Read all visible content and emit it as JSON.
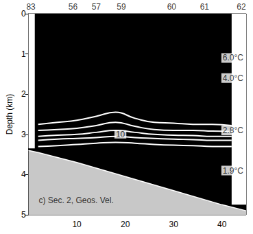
{
  "chart_data": {
    "type": "contour",
    "ylabel": "Depth (km)",
    "annotation": "c) Sec. 2, Geos. Vel.",
    "xlim": [
      0,
      45
    ],
    "xticks": [
      10,
      20,
      30,
      40
    ],
    "ylim": [
      0,
      5
    ],
    "yticks": [
      0,
      1,
      2,
      3,
      4,
      5
    ],
    "stations": {
      "labels": [
        "83",
        "56",
        "57",
        "59",
        "60",
        "61",
        "62"
      ],
      "x": [
        0.5,
        9.2,
        14,
        19.2,
        29.6,
        36.4,
        44
      ]
    },
    "temperature_labels": {
      "labels": [
        "6.0°C",
        "4.0°C",
        "2.8°C",
        "1.9°C"
      ],
      "depth": [
        1.1,
        1.6,
        2.9,
        3.9
      ]
    },
    "contour_x": [
      2,
      6,
      10,
      14,
      18,
      22,
      26,
      30,
      34,
      38,
      42
    ],
    "contour_lines": [
      [
        2.75,
        2.7,
        2.65,
        2.55,
        2.45,
        2.6,
        2.7,
        2.72,
        2.75,
        2.75,
        2.78
      ],
      [
        2.9,
        2.88,
        2.85,
        2.78,
        2.7,
        2.8,
        2.88,
        2.9,
        2.9,
        2.92,
        2.93
      ],
      [
        3.05,
        3.02,
        3.0,
        2.95,
        2.9,
        2.95,
        3.0,
        3.02,
        3.03,
        3.05,
        3.05
      ],
      [
        3.15,
        3.12,
        3.1,
        3.08,
        3.05,
        3.08,
        3.1,
        3.12,
        3.13,
        3.15,
        3.15
      ],
      [
        3.3,
        3.28,
        3.25,
        3.22,
        3.2,
        3.22,
        3.25,
        3.27,
        3.28,
        3.3,
        3.3
      ]
    ],
    "contour_label": {
      "text": "10",
      "x": 19,
      "depth": 3.0
    },
    "bottom": {
      "x": [
        0,
        2,
        10,
        20,
        30,
        40,
        45
      ],
      "depth": [
        3.4,
        3.45,
        3.7,
        4.05,
        4.4,
        4.75,
        4.9
      ]
    },
    "blank_regions": [
      {
        "x": [
          0,
          1.3
        ],
        "depth": [
          0,
          3.35
        ]
      },
      {
        "x": [
          42,
          45
        ],
        "depth": [
          0,
          4.75
        ]
      }
    ]
  }
}
